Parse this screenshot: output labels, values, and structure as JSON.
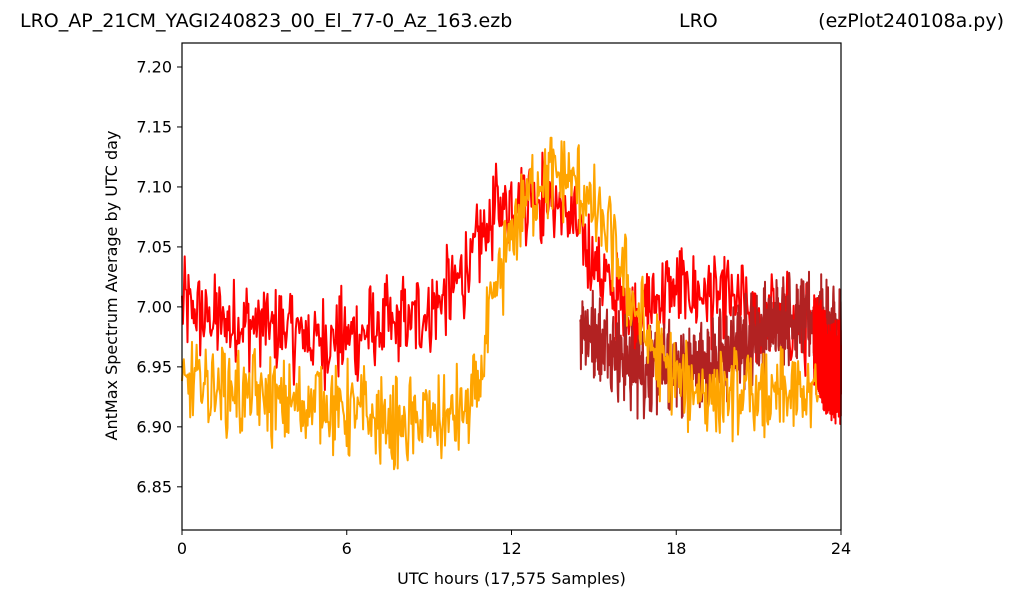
{
  "header": {
    "left": "LRO_AP_21CM_YAGI240823_00_El_77-0_Az_163.ezb",
    "center": "LRO",
    "right": "(ezPlot240108a.py)"
  },
  "chart_data": {
    "type": "line",
    "xlabel": "UTC hours  (17,575 Samples)",
    "ylabel": "AntMax Spectrum Average by UTC day",
    "xlim": [
      0,
      24
    ],
    "ylim": [
      6.814,
      7.22
    ],
    "xticks": [
      "0",
      "6",
      "12",
      "18",
      "24"
    ],
    "yticks": [
      "6.85",
      "6.90",
      "6.95",
      "7.00",
      "7.05",
      "7.10",
      "7.15",
      "7.20"
    ],
    "grid": false,
    "legend": "none",
    "series": [
      {
        "color": "#ff0000",
        "x": [
          0,
          1,
          2,
          3,
          4,
          5,
          6,
          7,
          8,
          9,
          10,
          10.5,
          11,
          11.5,
          12,
          12.5,
          13,
          13.5,
          14,
          14.5,
          15,
          15.5,
          16,
          16.5,
          17,
          17.5,
          18,
          19,
          20,
          21,
          22,
          23,
          23.2
        ],
        "y": [
          7.0,
          6.99,
          6.985,
          6.985,
          6.98,
          6.975,
          6.975,
          6.98,
          6.985,
          6.995,
          7.02,
          7.04,
          7.06,
          7.08,
          7.09,
          7.095,
          7.095,
          7.09,
          7.08,
          7.06,
          7.04,
          7.02,
          7.0,
          6.99,
          7.0,
          7.01,
          7.015,
          7.01,
          7.005,
          6.99,
          6.99,
          6.98,
          6.975
        ]
      },
      {
        "color": "#b22222",
        "x": [
          14.5,
          15,
          16,
          16.5,
          17,
          18,
          19,
          20,
          21,
          22,
          23,
          24
        ],
        "y": [
          6.99,
          6.975,
          6.96,
          6.95,
          6.95,
          6.95,
          6.95,
          6.96,
          6.98,
          6.99,
          6.99,
          6.98
        ]
      },
      {
        "color": "#ff0000",
        "x": [
          23,
          23.5,
          24
        ],
        "y": [
          6.975,
          6.95,
          6.945
        ]
      },
      {
        "color": "#ffa500",
        "x": [
          0,
          1,
          2,
          3,
          4,
          5,
          6,
          7,
          8,
          9,
          10,
          10.5,
          10.8,
          11,
          11.5,
          12,
          12.5,
          13,
          13.5,
          14,
          14.5,
          15,
          15.5,
          16,
          16.5,
          17,
          18,
          19,
          20,
          21,
          22,
          23,
          23.2
        ],
        "y": [
          6.935,
          6.935,
          6.93,
          6.925,
          6.92,
          6.92,
          6.915,
          6.905,
          6.9,
          6.905,
          6.91,
          6.915,
          6.93,
          6.96,
          7.02,
          7.06,
          7.09,
          7.105,
          7.11,
          7.11,
          7.1,
          7.08,
          7.06,
          7.03,
          7.0,
          6.97,
          6.94,
          6.93,
          6.925,
          6.925,
          6.925,
          6.925,
          6.92
        ]
      }
    ]
  }
}
